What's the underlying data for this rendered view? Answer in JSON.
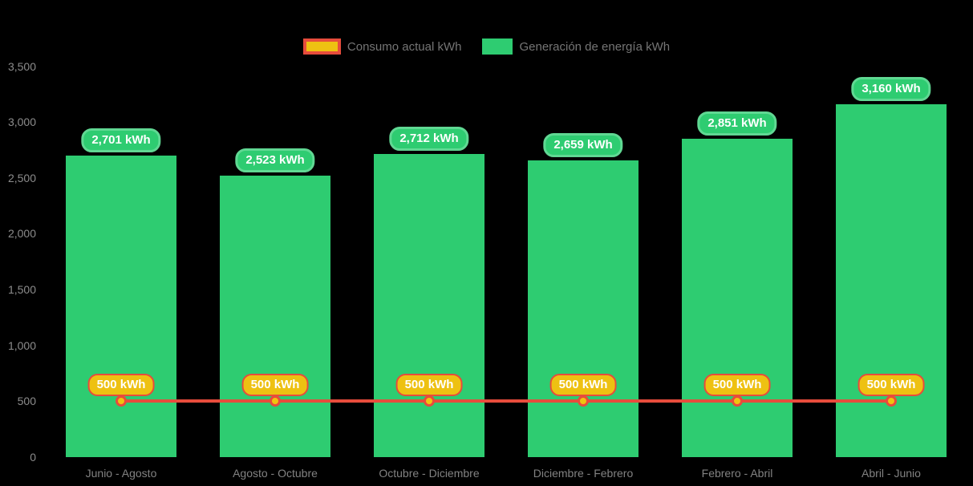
{
  "legend": {
    "items": [
      {
        "id": "consumo",
        "label": "Consumo actual kWh"
      },
      {
        "id": "generacion",
        "label": "Generación de energía kWh"
      }
    ]
  },
  "chart_data": {
    "type": "bar+line",
    "title": "",
    "xlabel": "",
    "ylabel": "",
    "categories": [
      "Junio - Agosto",
      "Agosto - Octubre",
      "Octubre - Diciembre",
      "Diciembre - Febrero",
      "Febrero - Abril",
      "Abril - Junio"
    ],
    "series": [
      {
        "name": "Generación de energía kWh",
        "type": "bar",
        "values": [
          2701,
          2523,
          2712,
          2659,
          2851,
          3160
        ],
        "data_labels": [
          "2,701 kWh",
          "2,523 kWh",
          "2,712 kWh",
          "2,659 kWh",
          "2,851 kWh",
          "3,160 kWh"
        ],
        "color": "#2ecc71"
      },
      {
        "name": "Consumo actual kWh",
        "type": "line",
        "values": [
          500,
          500,
          500,
          500,
          500,
          500
        ],
        "data_labels": [
          "500 kWh",
          "500 kWh",
          "500 kWh",
          "500 kWh",
          "500 kWh",
          "500 kWh"
        ],
        "line_color": "#e74c3c",
        "marker_color": "#f1c40f"
      }
    ],
    "ylim": [
      0,
      3500
    ],
    "ytick_values": [
      0,
      500,
      1000,
      1500,
      2000,
      2500,
      3000,
      3500
    ],
    "ytick_labels": [
      "0",
      "500",
      "1,000",
      "1,500",
      "2,000",
      "2,500",
      "3,000",
      "3,500"
    ],
    "grid": false,
    "legend_position": "top"
  },
  "colors": {
    "background": "#000000",
    "bar": "#2ecc71",
    "bar_label_bg": "#2ecc71",
    "bar_label_border": "#60d893",
    "line": "#e74c3c",
    "marker_fill": "#f1c40f",
    "line_label_bg": "#eec112",
    "line_label_border": "#e74c3c",
    "axis_text": "#8c8c8c",
    "legend_text": "#757575"
  }
}
